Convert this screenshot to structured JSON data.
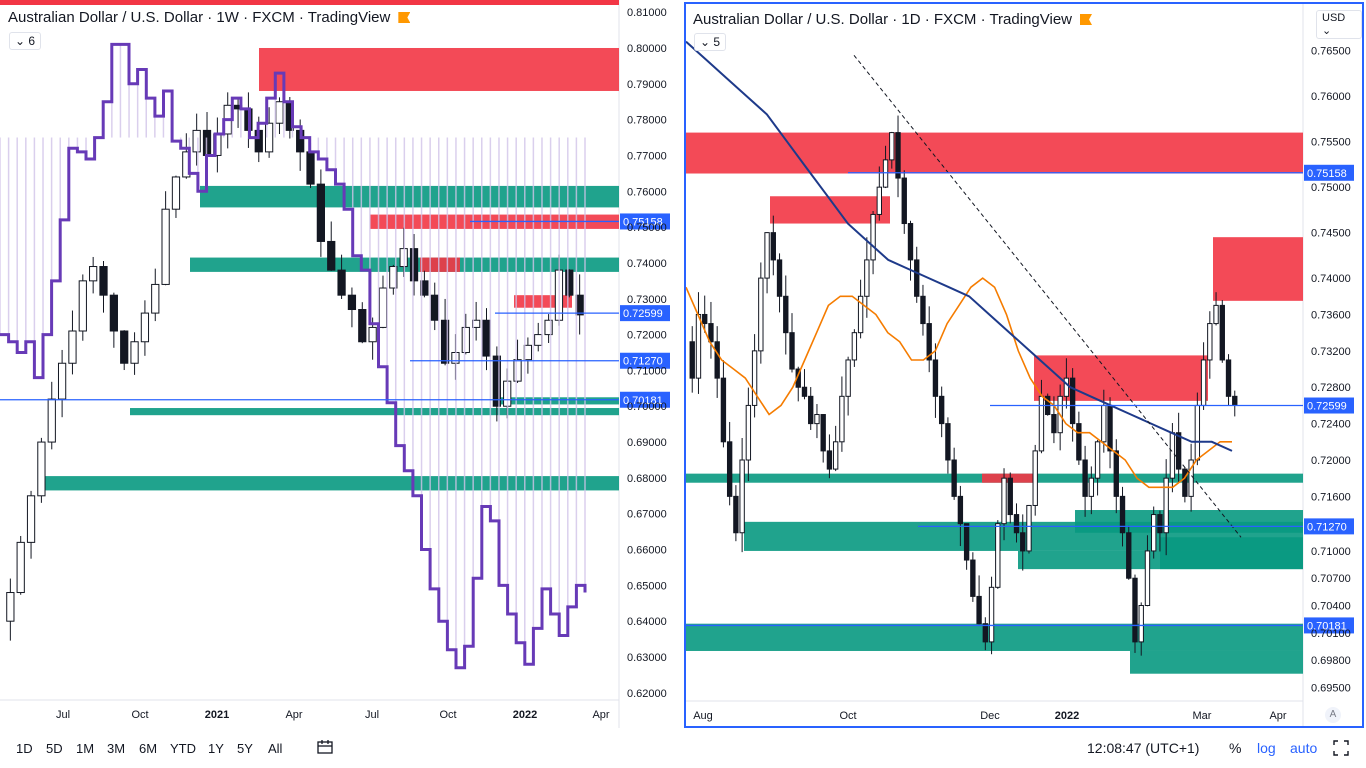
{
  "left_chart": {
    "title": "Australian Dollar / U.S. Dollar · 1W · FXCM · TradingView",
    "period_count": "6",
    "price_labels": [
      "0.75158",
      "0.72599",
      "0.71270",
      "0.70181"
    ],
    "chart_data": {
      "type": "candlestick",
      "interval": "1W",
      "ylim": [
        0.618,
        0.812
      ],
      "y_ticks": [
        "0.81000",
        "0.80000",
        "0.79000",
        "0.78000",
        "0.77000",
        "0.76000",
        "0.75000",
        "0.74000",
        "0.73000",
        "0.72000",
        "0.71000",
        "0.70000",
        "0.69000",
        "0.68000",
        "0.67000",
        "0.66000",
        "0.65000",
        "0.64000",
        "0.63000",
        "0.62000"
      ],
      "x_ticks": [
        "Jul",
        "Oct",
        "2021",
        "Apr",
        "Jul",
        "Oct",
        "2022",
        "Apr"
      ],
      "horizontal_lines": [
        0.75158,
        0.72599,
        0.7127,
        0.70181
      ],
      "supply_zones": [
        [
          0.788,
          0.8
        ],
        [
          0.7495,
          0.7535
        ],
        [
          0.7375,
          0.7415
        ],
        [
          0.7275,
          0.731
        ]
      ],
      "demand_zones": [
        [
          0.7555,
          0.7615
        ],
        [
          0.7375,
          0.7415
        ],
        [
          0.7005,
          0.7025
        ],
        [
          0.6975,
          0.6995
        ],
        [
          0.6765,
          0.6805
        ]
      ],
      "close_path": [
        0.64,
        0.648,
        0.662,
        0.675,
        0.69,
        0.702,
        0.712,
        0.721,
        0.735,
        0.739,
        0.731,
        0.721,
        0.712,
        0.718,
        0.726,
        0.734,
        0.755,
        0.764,
        0.771,
        0.777,
        0.77,
        0.776,
        0.784,
        0.783,
        0.777,
        0.771,
        0.779,
        0.785,
        0.777,
        0.771,
        0.762,
        0.746,
        0.738,
        0.731,
        0.727,
        0.718,
        0.722,
        0.733,
        0.739,
        0.744,
        0.735,
        0.731,
        0.724,
        0.712,
        0.715,
        0.722,
        0.724,
        0.714,
        0.7,
        0.707,
        0.713,
        0.717,
        0.72,
        0.724,
        0.738,
        0.731,
        0.7255
      ],
      "indicator_path": [
        0.72,
        0.718,
        0.715,
        0.718,
        0.708,
        0.72,
        0.735,
        0.752,
        0.772,
        0.771,
        0.769,
        0.775,
        0.785,
        0.801,
        0.801,
        0.79,
        0.794,
        0.786,
        0.781,
        0.788,
        0.774,
        0.772,
        0.765,
        0.76,
        0.77,
        0.776,
        0.78,
        0.786,
        0.783,
        0.775,
        0.779,
        0.786,
        0.793,
        0.785,
        0.778,
        0.775,
        0.771,
        0.769,
        0.766,
        0.762,
        0.755,
        0.742,
        0.738,
        0.723,
        0.711,
        0.701,
        0.689,
        0.682,
        0.675,
        0.66,
        0.649,
        0.64,
        0.632,
        0.627,
        0.633,
        0.652,
        0.672,
        0.668,
        0.65,
        0.642,
        0.634,
        0.628,
        0.638,
        0.649,
        0.642,
        0.636,
        0.644,
        0.65,
        0.648
      ]
    }
  },
  "right_chart": {
    "title": "Australian Dollar / U.S. Dollar · 1D · FXCM · TradingView",
    "period_count": "5",
    "currency": "USD",
    "auto_scale_label": "A",
    "price_labels": [
      "0.75158",
      "0.72599",
      "0.71270",
      "0.70181"
    ],
    "chart_data": {
      "type": "candlestick",
      "interval": "1D",
      "ylim": [
        0.6935,
        0.7675
      ],
      "y_ticks": [
        "0.76500",
        "0.76000",
        "0.75500",
        "0.75000",
        "0.74500",
        "0.74000",
        "0.73600",
        "0.73200",
        "0.72800",
        "0.72400",
        "0.72000",
        "0.71600",
        "0.71000",
        "0.70700",
        "0.70400",
        "0.70100",
        "0.69800",
        "0.69500"
      ],
      "x_ticks": [
        "Aug",
        "Oct",
        "Dec",
        "2022",
        "Mar",
        "Apr"
      ],
      "horizontal_lines": [
        0.75158,
        0.72599,
        0.7127,
        0.70181
      ],
      "supply_zones": [
        [
          0.7515,
          0.756
        ],
        [
          0.746,
          0.749
        ],
        [
          0.7265,
          0.7315
        ],
        [
          0.7375,
          0.7445
        ],
        [
          0.7175,
          0.7185
        ]
      ],
      "demand_zones": [
        [
          0.71,
          0.7132
        ],
        [
          0.708,
          0.71
        ],
        [
          0.712,
          0.7145
        ],
        [
          0.708,
          0.7115
        ],
        [
          0.699,
          0.702
        ],
        [
          0.6965,
          0.699
        ],
        [
          0.7175,
          0.7185
        ]
      ],
      "close_path": [
        0.733,
        0.729,
        0.736,
        0.735,
        0.733,
        0.729,
        0.722,
        0.716,
        0.712,
        0.72,
        0.726,
        0.732,
        0.74,
        0.745,
        0.742,
        0.738,
        0.734,
        0.73,
        0.728,
        0.727,
        0.724,
        0.725,
        0.721,
        0.719,
        0.722,
        0.727,
        0.731,
        0.734,
        0.738,
        0.742,
        0.747,
        0.75,
        0.753,
        0.756,
        0.751,
        0.746,
        0.742,
        0.738,
        0.735,
        0.731,
        0.727,
        0.724,
        0.72,
        0.716,
        0.713,
        0.709,
        0.705,
        0.702,
        0.7,
        0.706,
        0.713,
        0.718,
        0.714,
        0.712,
        0.71,
        0.715,
        0.721,
        0.727,
        0.725,
        0.723,
        0.727,
        0.729,
        0.724,
        0.72,
        0.716,
        0.718,
        0.722,
        0.726,
        0.721,
        0.716,
        0.712,
        0.707,
        0.7,
        0.704,
        0.71,
        0.714,
        0.712,
        0.718,
        0.723,
        0.719,
        0.716,
        0.72,
        0.726,
        0.731,
        0.735,
        0.737,
        0.731,
        0.727,
        0.726
      ],
      "ma_orange": [
        0.739,
        0.736,
        0.733,
        0.731,
        0.73,
        0.729,
        0.727,
        0.725,
        0.726,
        0.728,
        0.731,
        0.734,
        0.737,
        0.738,
        0.738,
        0.737,
        0.736,
        0.734,
        0.733,
        0.731,
        0.731,
        0.732,
        0.735,
        0.737,
        0.739,
        0.74,
        0.739,
        0.736,
        0.732,
        0.729,
        0.727,
        0.726,
        0.724,
        0.723,
        0.723,
        0.722,
        0.721,
        0.72,
        0.718,
        0.717,
        0.717,
        0.717,
        0.718,
        0.72,
        0.721,
        0.722,
        0.722
      ],
      "ma_blue": [
        0.766,
        0.764,
        0.762,
        0.76,
        0.758,
        0.755,
        0.752,
        0.749,
        0.746,
        0.744,
        0.742,
        0.741,
        0.74,
        0.739,
        0.738,
        0.736,
        0.734,
        0.732,
        0.73,
        0.728,
        0.727,
        0.726,
        0.725,
        0.724,
        0.723,
        0.722,
        0.722,
        0.721
      ],
      "trendline": [
        [
          0.7645,
          0.7115
        ]
      ]
    }
  },
  "bottom_bar": {
    "timeframes": [
      "1D",
      "5D",
      "1M",
      "3M",
      "6M",
      "YTD",
      "1Y",
      "5Y",
      "All"
    ],
    "time": "12:08:47 (UTC+1)",
    "percent_label": "%",
    "log_label": "log",
    "auto_label": "auto"
  },
  "colors": {
    "supply": "#f23645",
    "demand": "#089981",
    "price_line": "#2962ff",
    "indicator": "#673ab7",
    "ma_orange": "#f57c00",
    "ma_blue": "#1e3a8a"
  }
}
